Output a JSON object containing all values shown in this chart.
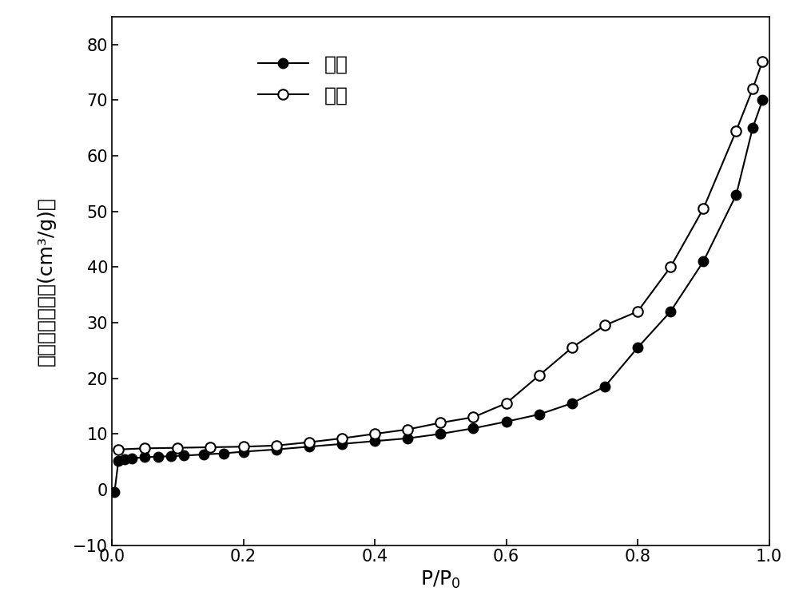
{
  "adsorption_x": [
    0.004,
    0.01,
    0.02,
    0.03,
    0.05,
    0.07,
    0.09,
    0.11,
    0.14,
    0.17,
    0.2,
    0.25,
    0.3,
    0.35,
    0.4,
    0.45,
    0.5,
    0.55,
    0.6,
    0.65,
    0.7,
    0.75,
    0.8,
    0.85,
    0.9,
    0.95,
    0.975,
    0.99
  ],
  "adsorption_y": [
    -0.5,
    5.2,
    5.5,
    5.6,
    5.8,
    5.9,
    6.0,
    6.1,
    6.3,
    6.5,
    6.8,
    7.2,
    7.7,
    8.2,
    8.7,
    9.2,
    10.0,
    11.0,
    12.2,
    13.5,
    15.5,
    18.5,
    25.5,
    32.0,
    41.0,
    53.0,
    65.0,
    70.0
  ],
  "desorption_x": [
    0.01,
    0.05,
    0.1,
    0.15,
    0.2,
    0.25,
    0.3,
    0.35,
    0.4,
    0.45,
    0.5,
    0.55,
    0.6,
    0.65,
    0.7,
    0.75,
    0.8,
    0.85,
    0.9,
    0.95,
    0.975,
    0.99
  ],
  "desorption_y": [
    7.2,
    7.4,
    7.5,
    7.6,
    7.7,
    7.9,
    8.5,
    9.2,
    10.0,
    10.8,
    12.0,
    13.0,
    15.5,
    20.5,
    25.5,
    29.5,
    32.0,
    40.0,
    50.5,
    64.5,
    72.0,
    77.0
  ],
  "legend_adsorption": "吸附",
  "legend_desorption": "脱附",
  "ylabel_chinese": "吸（脱）附量",
  "ylabel_unit": "(cm³/g)",
  "xlim": [
    0.0,
    1.0
  ],
  "ylim": [
    -10,
    85
  ],
  "yticks": [
    -10,
    0,
    10,
    20,
    30,
    40,
    50,
    60,
    70,
    80
  ],
  "xticks": [
    0.0,
    0.2,
    0.4,
    0.6,
    0.8,
    1.0
  ],
  "line_color": "#000000",
  "marker_size": 9,
  "line_width": 1.5,
  "background_color": "#ffffff",
  "legend_fontsize": 18,
  "axis_label_fontsize": 18,
  "tick_fontsize": 15
}
